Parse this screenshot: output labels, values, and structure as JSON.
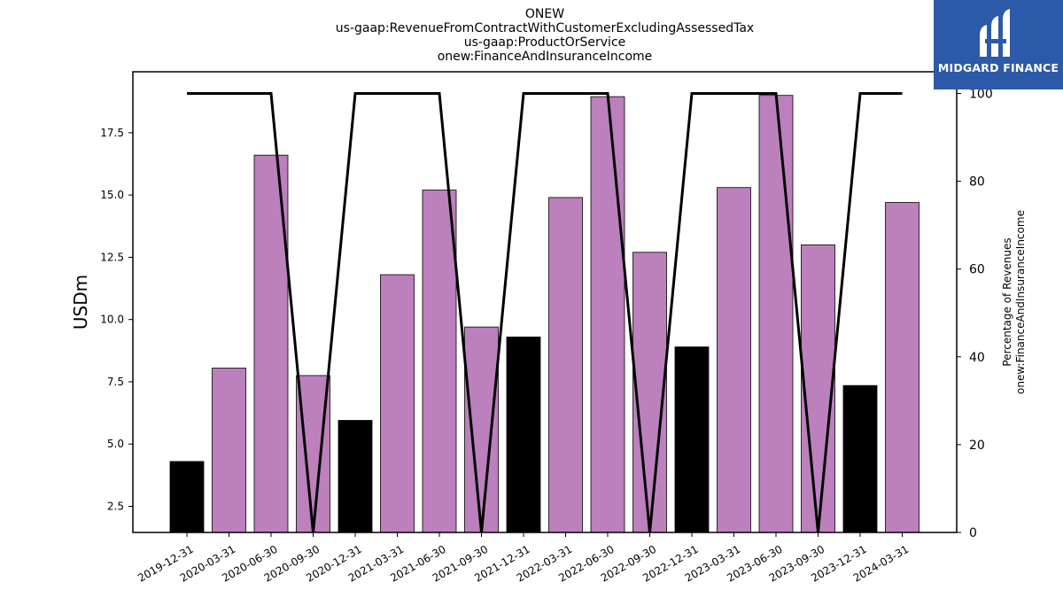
{
  "title_lines": [
    "ONEW",
    "us-gaap:RevenueFromContractWithCustomerExcludingAssessedTax",
    "us-gaap:ProductOrService",
    "onew:FinanceAndInsuranceIncome"
  ],
  "logo": {
    "text": "MIDGARD FINANCE",
    "background": "#2c5aa8"
  },
  "chart_data": {
    "type": "bar",
    "title": "ONEW us-gaap:RevenueFromContractWithCustomerExcludingAssessedTax us-gaap:ProductOrService onew:FinanceAndInsuranceIncome",
    "ylabel": "USDm",
    "y2label_lines": [
      "Percentage of Revenues",
      "onew:FinanceAndInsuranceIncome"
    ],
    "categories": [
      "2019-12-31",
      "2020-03-31",
      "2020-06-30",
      "2020-09-30",
      "2020-12-31",
      "2021-03-31",
      "2021-06-30",
      "2021-09-30",
      "2021-12-31",
      "2022-03-31",
      "2022-06-30",
      "2022-09-30",
      "2022-12-31",
      "2023-03-31",
      "2023-06-30",
      "2023-09-30",
      "2023-12-31",
      "2024-03-31"
    ],
    "values": [
      4.3,
      8.05,
      16.6,
      7.75,
      5.95,
      11.8,
      15.2,
      9.7,
      9.3,
      14.9,
      18.95,
      12.7,
      8.9,
      15.3,
      19.0,
      13.0,
      7.35,
      14.7
    ],
    "bar_colors": [
      "#000000",
      "#bc80bd",
      "#bc80bd",
      "#bc80bd",
      "#000000",
      "#bc80bd",
      "#bc80bd",
      "#bc80bd",
      "#000000",
      "#bc80bd",
      "#bc80bd",
      "#bc80bd",
      "#000000",
      "#bc80bd",
      "#bc80bd",
      "#bc80bd",
      "#000000",
      "#bc80bd"
    ],
    "series": [
      {
        "values": [
          100,
          100,
          100,
          0,
          100,
          100,
          100,
          0,
          100,
          100,
          100,
          0,
          100,
          100,
          100,
          0,
          100,
          100
        ]
      }
    ],
    "ylim": [
      1.45,
      19.95
    ],
    "y2lim": [
      0,
      100
    ],
    "yticks": [
      2.5,
      5.0,
      7.5,
      10.0,
      12.5,
      15.0,
      17.5
    ],
    "y2ticks": [
      0,
      20,
      40,
      60,
      80,
      100
    ],
    "grid": false
  }
}
